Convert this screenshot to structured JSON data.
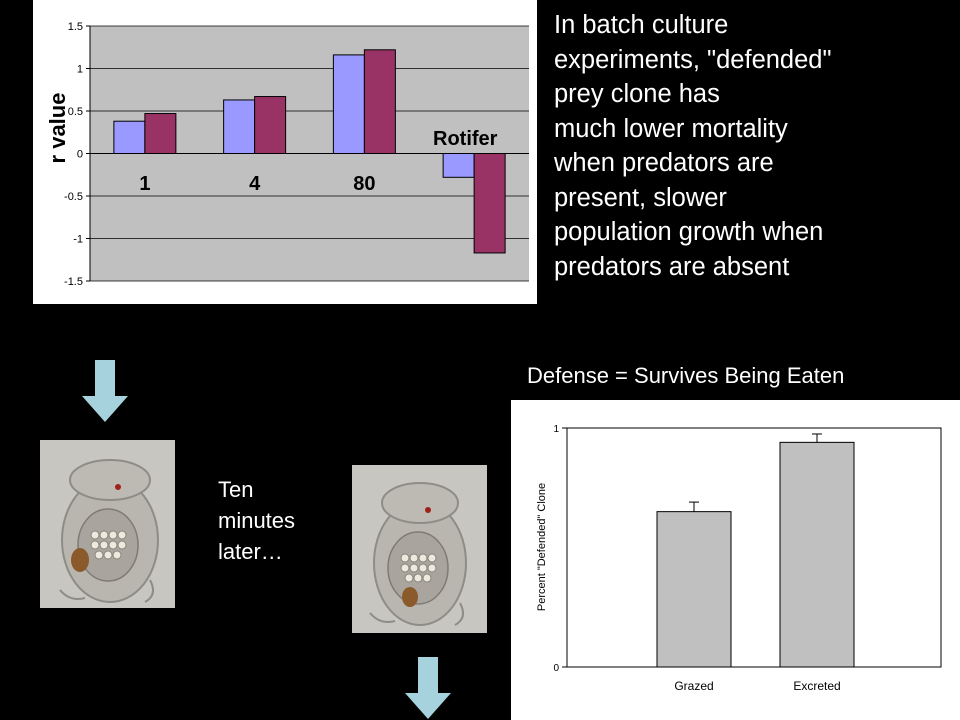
{
  "chart_data": [
    {
      "type": "bar",
      "title": "",
      "xlabel": "",
      "ylabel": "r value",
      "ylim": [
        -1.5,
        1.5
      ],
      "yticks": [
        -1.5,
        -1,
        -0.5,
        0,
        0.5,
        1,
        1.5
      ],
      "ytick_labels": [
        "-1.5",
        "-1",
        "-0.5",
        "0",
        "0.5",
        "1",
        "1.5"
      ],
      "categories": [
        "1",
        "4",
        "80",
        ""
      ],
      "series": [
        {
          "values": [
            0.38,
            0.63,
            1.16,
            -0.28
          ],
          "color": "#9999ff"
        },
        {
          "values": [
            0.47,
            0.67,
            1.22,
            -1.17
          ],
          "color": "#993366"
        }
      ],
      "annotation": "Rotifer",
      "grid": true,
      "legend": "none"
    },
    {
      "type": "bar",
      "title": "Defense = Survives Being Eaten",
      "xlabel": "",
      "ylabel": "Percent \"Defended\" Clone",
      "ylim": [
        0,
        1
      ],
      "yticks": [
        0,
        1
      ],
      "ytick_labels": [
        "0",
        "1"
      ],
      "categories": [
        "Grazed",
        "Excreted"
      ],
      "values": [
        0.65,
        0.94
      ],
      "errors": [
        0.04,
        0.035
      ],
      "color": "#c0c0c0",
      "grid": false,
      "legend": "none"
    }
  ],
  "description_lines": [
    "In batch culture",
    "experiments, \"defended\"",
    "prey clone has",
    "much lower mortality",
    "when predators are",
    "present, slower",
    "population growth when",
    "predators are absent"
  ],
  "caption_lines": [
    "Ten",
    "minutes",
    "later…"
  ],
  "colors": {
    "arrow": "#a6d2de",
    "background": "#000000",
    "plot_area": "#c0c0c0"
  }
}
